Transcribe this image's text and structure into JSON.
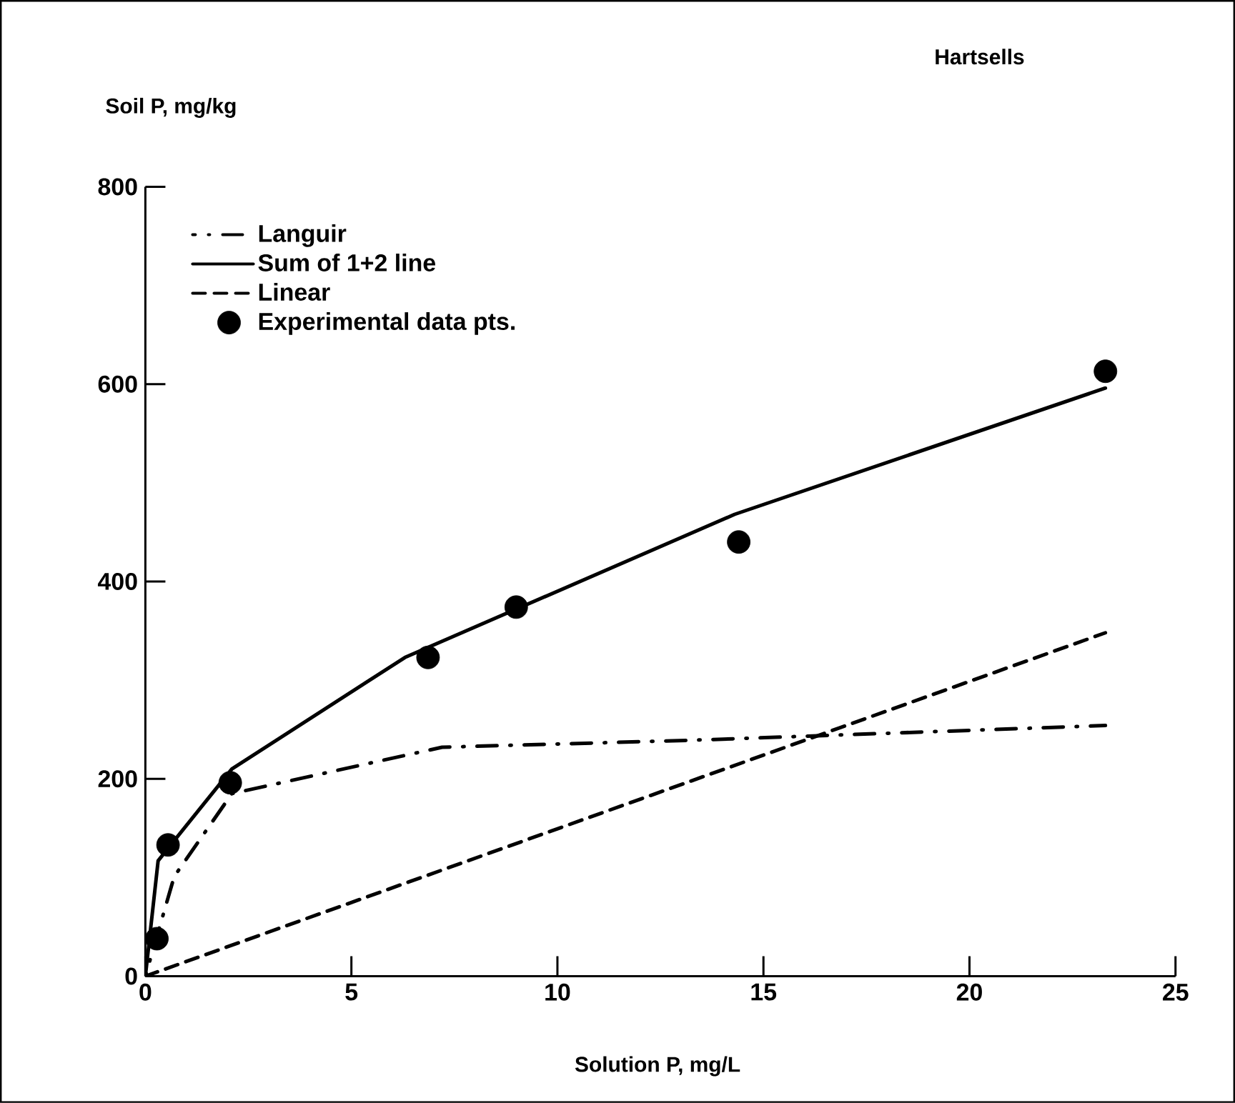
{
  "chart_data": {
    "type": "line",
    "title": "Hartsells",
    "xlabel": "Solution P, mg/L",
    "ylabel": "Soil P, mg/kg",
    "xlim": [
      0,
      25
    ],
    "ylim": [
      0,
      800
    ],
    "xticks": [
      0,
      5,
      10,
      15,
      20,
      25
    ],
    "yticks": [
      0,
      200,
      400,
      600,
      800
    ],
    "grid": false,
    "legend": "top left",
    "series": [
      {
        "name": "Languir",
        "color": "#000000",
        "line_style": "dashdot",
        "marker": "none",
        "x": [
          0,
          0.7,
          2.1,
          7.2,
          13.2,
          23.3
        ],
        "values": [
          0,
          101,
          185,
          232,
          239,
          254
        ]
      },
      {
        "name": "Sum of 1+2 line",
        "color": "#000000",
        "line_style": "solid",
        "marker": "none",
        "x": [
          0,
          0.31,
          2.1,
          6.3,
          14.3,
          23.3
        ],
        "values": [
          0,
          117,
          210,
          323,
          468,
          596
        ]
      },
      {
        "name": "Linear",
        "color": "#000000",
        "line_style": "dashed",
        "marker": "none",
        "x": [
          0,
          23.3
        ],
        "values": [
          0,
          348
        ]
      },
      {
        "name": "Experimental data pts.",
        "type": "scatter",
        "color": "#000000",
        "marker": "circle",
        "x": [
          0.28,
          0.55,
          2.06,
          6.86,
          9.0,
          14.4,
          23.3
        ],
        "values": [
          38,
          133,
          196,
          323,
          374,
          440,
          613
        ]
      }
    ]
  }
}
